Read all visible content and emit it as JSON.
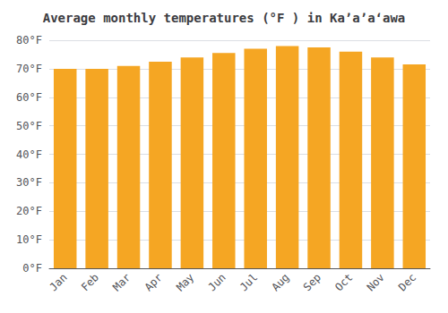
{
  "chart_data": {
    "type": "bar",
    "title": "Average monthly temperatures (°F ) in Kaʼaʼaʻawa",
    "categories": [
      "Jan",
      "Feb",
      "Mar",
      "Apr",
      "May",
      "Jun",
      "Jul",
      "Aug",
      "Sep",
      "Oct",
      "Nov",
      "Dec"
    ],
    "values": [
      70.0,
      70.0,
      71.0,
      72.5,
      74.0,
      75.5,
      77.0,
      78.0,
      77.5,
      76.0,
      74.0,
      71.5
    ],
    "color": "#F5A623",
    "ylim": [
      0,
      80
    ],
    "yticks": [
      {
        "value": 0,
        "label": "0°F"
      },
      {
        "value": 10,
        "label": "10°F"
      },
      {
        "value": 20,
        "label": "20°F"
      },
      {
        "value": 30,
        "label": "30°F"
      },
      {
        "value": 40,
        "label": "40°F"
      },
      {
        "value": 50,
        "label": "50°F"
      },
      {
        "value": 60,
        "label": "60°F"
      },
      {
        "value": 70,
        "label": "70°F"
      },
      {
        "value": 80,
        "label": "80°F"
      }
    ],
    "grid": true
  }
}
